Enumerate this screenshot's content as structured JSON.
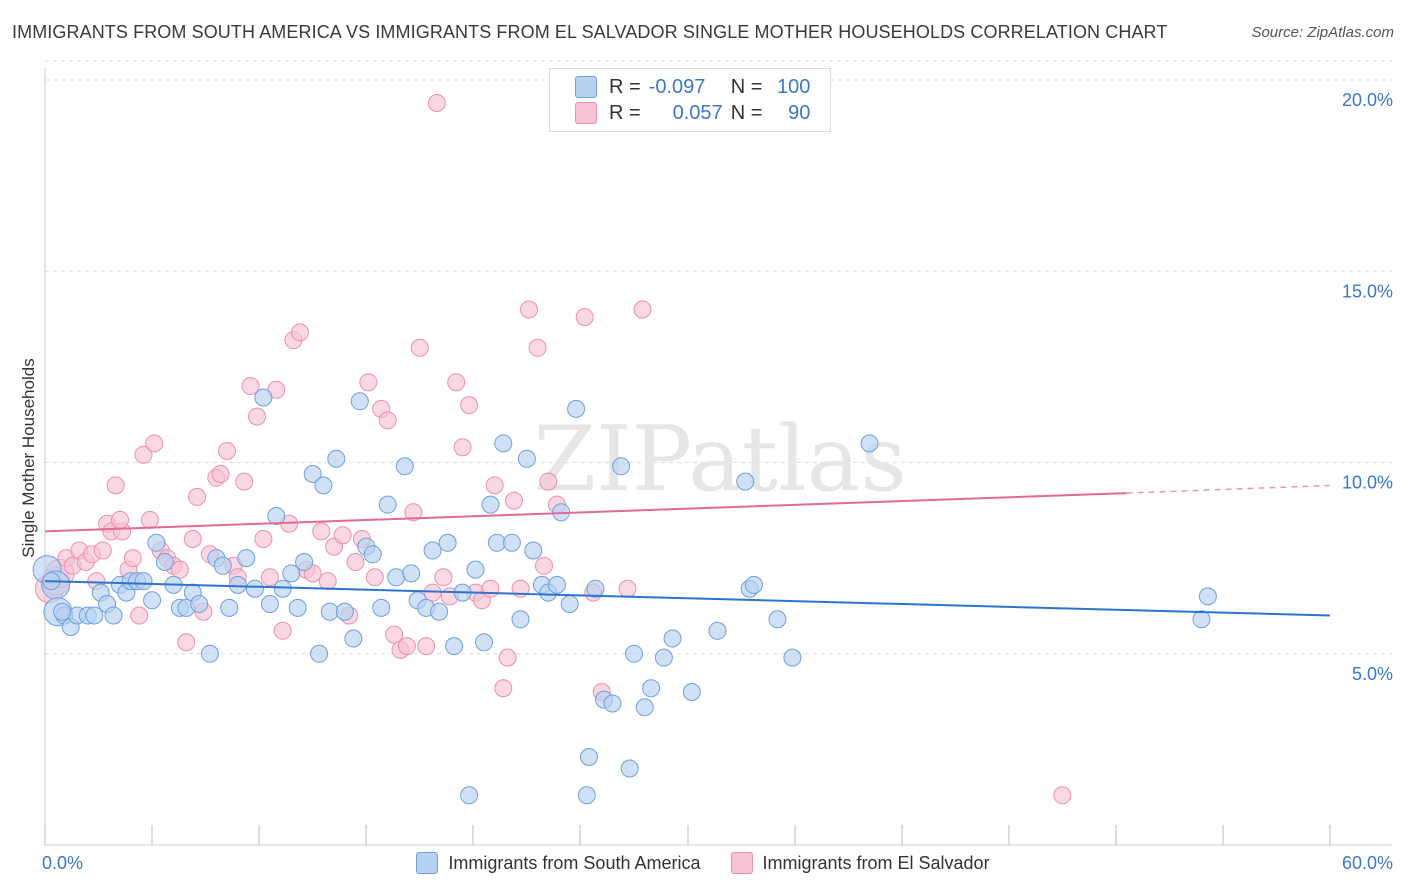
{
  "title": "IMMIGRANTS FROM SOUTH AMERICA VS IMMIGRANTS FROM EL SALVADOR SINGLE MOTHER HOUSEHOLDS CORRELATION CHART",
  "source": "Source: ZipAtlas.com",
  "watermark": "ZIPatlas",
  "inset_legend": [
    {
      "r_label": "R =",
      "r_value": "-0.097",
      "n_label": "N =",
      "n_value": "100"
    },
    {
      "r_label": "R =",
      "r_value": "0.057",
      "n_label": "N =",
      "n_value": "90"
    }
  ],
  "chart_data": {
    "type": "scatter",
    "title": "IMMIGRANTS FROM SOUTH AMERICA VS IMMIGRANTS FROM EL SALVADOR SINGLE MOTHER HOUSEHOLDS CORRELATION CHART",
    "xlabel": "",
    "ylabel": "Single Mother Households",
    "xlim": [
      0,
      60
    ],
    "ylim": [
      0,
      20.5
    ],
    "x_tick_labels": [
      "0.0%",
      "60.0%"
    ],
    "y_ticks": [
      5,
      10,
      15,
      20
    ],
    "y_tick_labels": [
      "5.0%",
      "10.0%",
      "15.0%",
      "20.0%"
    ],
    "colors": {
      "blue_fill": "#b7d1f1",
      "blue_edge": "#6ea0dc",
      "blue_line": "#2d74d0",
      "pink_fill": "#f8c3d4",
      "pink_edge": "#ee8fad",
      "pink_line": "#e2699a",
      "axis_label": "#3b78c8"
    },
    "series": [
      {
        "name": "Immigrants from South America",
        "color": "#6ea0dc",
        "trend": {
          "x0": 0,
          "y0": 6.9,
          "x1": 60,
          "y1": 6.0
        },
        "points": [
          [
            0.1,
            7.2
          ],
          [
            0.5,
            6.8
          ],
          [
            0.6,
            6.1
          ],
          [
            0.9,
            6.0
          ],
          [
            1.2,
            5.7
          ],
          [
            1.5,
            6.0
          ],
          [
            2.0,
            6.0
          ],
          [
            2.3,
            6.0
          ],
          [
            2.6,
            6.6
          ],
          [
            2.9,
            6.3
          ],
          [
            3.2,
            6.0
          ],
          [
            3.5,
            6.8
          ],
          [
            3.8,
            6.6
          ],
          [
            4.0,
            6.9
          ],
          [
            4.3,
            6.9
          ],
          [
            4.6,
            6.9
          ],
          [
            5.0,
            6.4
          ],
          [
            5.2,
            7.9
          ],
          [
            5.6,
            7.4
          ],
          [
            6.0,
            6.8
          ],
          [
            6.3,
            6.2
          ],
          [
            6.6,
            6.2
          ],
          [
            6.9,
            6.6
          ],
          [
            7.2,
            6.3
          ],
          [
            7.7,
            5.0
          ],
          [
            8.0,
            7.5
          ],
          [
            8.3,
            7.3
          ],
          [
            8.6,
            6.2
          ],
          [
            9.0,
            6.8
          ],
          [
            9.4,
            7.5
          ],
          [
            9.8,
            6.7
          ],
          [
            10.2,
            11.7
          ],
          [
            10.5,
            6.3
          ],
          [
            10.8,
            8.6
          ],
          [
            11.1,
            6.7
          ],
          [
            11.5,
            7.1
          ],
          [
            11.8,
            6.2
          ],
          [
            12.1,
            7.4
          ],
          [
            12.5,
            9.7
          ],
          [
            12.8,
            5.0
          ],
          [
            13.0,
            9.4
          ],
          [
            13.3,
            6.1
          ],
          [
            13.6,
            10.1
          ],
          [
            14.0,
            6.1
          ],
          [
            14.4,
            5.4
          ],
          [
            14.7,
            11.6
          ],
          [
            15.0,
            7.8
          ],
          [
            15.3,
            7.6
          ],
          [
            15.7,
            6.2
          ],
          [
            16.0,
            8.9
          ],
          [
            16.4,
            7.0
          ],
          [
            16.8,
            9.9
          ],
          [
            17.1,
            7.1
          ],
          [
            17.4,
            6.4
          ],
          [
            17.8,
            6.2
          ],
          [
            18.1,
            7.7
          ],
          [
            18.4,
            6.1
          ],
          [
            18.8,
            7.9
          ],
          [
            19.1,
            5.2
          ],
          [
            19.5,
            6.6
          ],
          [
            19.8,
            1.3
          ],
          [
            20.1,
            7.2
          ],
          [
            20.5,
            5.3
          ],
          [
            20.8,
            8.9
          ],
          [
            21.1,
            7.9
          ],
          [
            21.4,
            10.5
          ],
          [
            21.8,
            7.9
          ],
          [
            22.2,
            5.9
          ],
          [
            22.5,
            10.1
          ],
          [
            22.8,
            7.7
          ],
          [
            23.2,
            6.8
          ],
          [
            23.5,
            6.6
          ],
          [
            23.9,
            6.8
          ],
          [
            24.1,
            8.7
          ],
          [
            24.5,
            6.3
          ],
          [
            24.8,
            11.4
          ],
          [
            25.3,
            1.3
          ],
          [
            25.7,
            6.7
          ],
          [
            26.1,
            3.8
          ],
          [
            26.5,
            3.7
          ],
          [
            26.9,
            9.9
          ],
          [
            27.3,
            2.0
          ],
          [
            27.5,
            5.0
          ],
          [
            28.0,
            3.6
          ],
          [
            28.3,
            4.1
          ],
          [
            28.9,
            4.9
          ],
          [
            29.3,
            5.4
          ],
          [
            30.2,
            4.0
          ],
          [
            31.4,
            5.6
          ],
          [
            32.7,
            9.5
          ],
          [
            32.9,
            6.7
          ],
          [
            33.1,
            6.8
          ],
          [
            34.2,
            5.9
          ],
          [
            34.9,
            4.9
          ],
          [
            38.5,
            10.5
          ],
          [
            25.4,
            2.3
          ],
          [
            54.0,
            5.9
          ],
          [
            54.3,
            6.5
          ],
          [
            0.3,
            6.9
          ],
          [
            0.8,
            6.1
          ]
        ]
      },
      {
        "name": "Immigrants from El Salvador",
        "color": "#ee8fad",
        "trend": {
          "x0": 0,
          "y0": 8.2,
          "x1": 50.5,
          "y1": 9.2,
          "dash_to": {
            "x": 60,
            "y": 9.4
          }
        },
        "points": [
          [
            0.2,
            6.7
          ],
          [
            0.5,
            6.9
          ],
          [
            0.7,
            7.1
          ],
          [
            1.0,
            7.5
          ],
          [
            1.3,
            7.3
          ],
          [
            1.6,
            7.7
          ],
          [
            1.9,
            7.4
          ],
          [
            2.2,
            7.6
          ],
          [
            2.4,
            6.9
          ],
          [
            2.7,
            7.7
          ],
          [
            2.9,
            8.4
          ],
          [
            3.1,
            8.2
          ],
          [
            3.3,
            9.4
          ],
          [
            3.6,
            8.2
          ],
          [
            3.9,
            7.2
          ],
          [
            4.1,
            7.5
          ],
          [
            4.4,
            6.0
          ],
          [
            4.6,
            10.2
          ],
          [
            4.9,
            8.5
          ],
          [
            5.1,
            10.5
          ],
          [
            5.4,
            7.7
          ],
          [
            5.7,
            7.5
          ],
          [
            6.0,
            7.3
          ],
          [
            6.3,
            7.2
          ],
          [
            6.6,
            5.3
          ],
          [
            6.9,
            8.0
          ],
          [
            7.1,
            9.1
          ],
          [
            7.4,
            6.1
          ],
          [
            7.7,
            7.6
          ],
          [
            8.0,
            9.6
          ],
          [
            8.2,
            9.7
          ],
          [
            8.5,
            10.3
          ],
          [
            8.8,
            7.3
          ],
          [
            9.0,
            7.0
          ],
          [
            9.3,
            9.5
          ],
          [
            9.6,
            12.0
          ],
          [
            9.9,
            11.2
          ],
          [
            10.2,
            8.0
          ],
          [
            10.5,
            7.0
          ],
          [
            10.8,
            11.9
          ],
          [
            11.1,
            5.6
          ],
          [
            11.4,
            8.4
          ],
          [
            11.6,
            13.2
          ],
          [
            11.9,
            13.4
          ],
          [
            12.2,
            7.2
          ],
          [
            12.5,
            7.1
          ],
          [
            12.9,
            8.2
          ],
          [
            13.2,
            6.9
          ],
          [
            13.5,
            7.8
          ],
          [
            13.9,
            8.1
          ],
          [
            14.2,
            6.0
          ],
          [
            14.5,
            7.4
          ],
          [
            14.8,
            8.0
          ],
          [
            15.1,
            12.1
          ],
          [
            15.4,
            7.0
          ],
          [
            15.7,
            11.4
          ],
          [
            16.0,
            11.1
          ],
          [
            16.3,
            5.5
          ],
          [
            16.6,
            5.1
          ],
          [
            16.9,
            5.2
          ],
          [
            17.2,
            8.7
          ],
          [
            17.5,
            13.0
          ],
          [
            17.8,
            5.2
          ],
          [
            18.1,
            6.6
          ],
          [
            18.3,
            19.4
          ],
          [
            18.6,
            7.0
          ],
          [
            18.9,
            6.5
          ],
          [
            19.2,
            12.1
          ],
          [
            19.5,
            10.4
          ],
          [
            19.8,
            11.5
          ],
          [
            20.1,
            6.6
          ],
          [
            20.4,
            6.4
          ],
          [
            20.8,
            6.7
          ],
          [
            21.0,
            9.4
          ],
          [
            21.4,
            4.1
          ],
          [
            21.6,
            4.9
          ],
          [
            21.9,
            9.0
          ],
          [
            22.2,
            6.7
          ],
          [
            22.6,
            14.0
          ],
          [
            23.0,
            13.0
          ],
          [
            23.3,
            7.3
          ],
          [
            23.5,
            9.5
          ],
          [
            23.9,
            8.9
          ],
          [
            25.2,
            13.8
          ],
          [
            25.6,
            6.6
          ],
          [
            26.0,
            4.0
          ],
          [
            27.2,
            6.7
          ],
          [
            27.9,
            14.0
          ],
          [
            47.5,
            1.3
          ],
          [
            3.5,
            8.5
          ]
        ]
      }
    ]
  },
  "legend_bottom": [
    {
      "label": "Immigrants from South America"
    },
    {
      "label": "Immigrants from El Salvador"
    }
  ]
}
